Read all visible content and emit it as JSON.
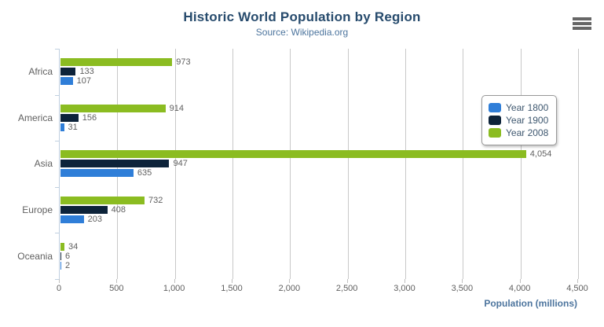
{
  "chart_data": {
    "type": "bar",
    "orientation": "horizontal",
    "title": "Historic World Population by Region",
    "subtitle": "Source: Wikipedia.org",
    "categories": [
      "Africa",
      "America",
      "Asia",
      "Europe",
      "Oceania"
    ],
    "series": [
      {
        "name": "Year 1800",
        "color": "#2f7ed8",
        "values": [
          107,
          31,
          635,
          203,
          2
        ]
      },
      {
        "name": "Year 1900",
        "color": "#0d233a",
        "values": [
          133,
          156,
          947,
          408,
          6
        ]
      },
      {
        "name": "Year 2008",
        "color": "#8bbc21",
        "values": [
          973,
          914,
          4054,
          732,
          34
        ]
      }
    ],
    "bar_order_top_to_bottom": [
      "Year 2008",
      "Year 1900",
      "Year 1800"
    ],
    "data_labels_visible": true,
    "xlabel": "Population (millions)",
    "xlim": [
      0,
      4500
    ],
    "x_tick_step": 500,
    "x_tick_labels": [
      "0",
      "500",
      "1,000",
      "1,500",
      "2,000",
      "2,500",
      "3,000",
      "3,500",
      "4,000",
      "4,500"
    ],
    "grid": true,
    "legend_position": "right-inside"
  },
  "colors": {
    "title": "#274b6d",
    "subtitle": "#4d759e",
    "axis_labels": "#606060",
    "data_labels": "#606060",
    "gridline": "#c8c8c8",
    "axis_line": "#c0d0e0",
    "legend_border": "#999999",
    "legend_text": "#3e576f",
    "menu_icon": "#666666"
  },
  "menu": {
    "name": "chart context menu"
  }
}
